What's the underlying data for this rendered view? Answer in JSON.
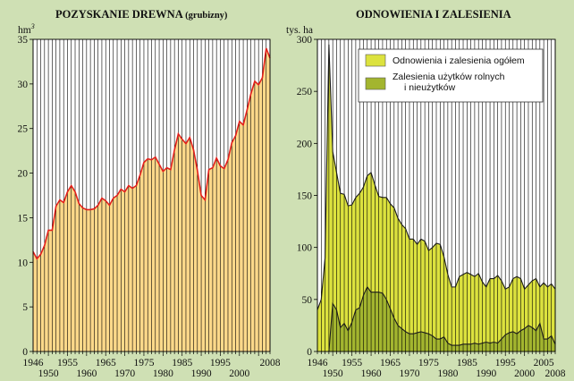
{
  "chart_data": [
    {
      "type": "area",
      "title": "POZYSKANIE DREWNA",
      "subtitle": "(grubizny)",
      "ylabel": "hm",
      "ylabel_sup": "3",
      "ylim": [
        0,
        35
      ],
      "yticks": [
        0,
        5,
        10,
        15,
        20,
        25,
        30,
        35
      ],
      "xlim": [
        1946,
        2008
      ],
      "xticks_top": [
        "1946",
        "1955",
        "1965",
        "1975",
        "1985",
        "1995",
        "2008"
      ],
      "xticks_top_values": [
        1946,
        1955,
        1965,
        1975,
        1985,
        1995,
        2008
      ],
      "xticks_bottom": [
        "1950",
        "1960",
        "1970",
        "1980",
        "1990",
        "2000"
      ],
      "xticks_bottom_values": [
        1950,
        1960,
        1970,
        1980,
        1990,
        2000
      ],
      "grid": "vertical",
      "colors": {
        "fill": "#fdd98a",
        "line": "#e3201b",
        "grid": "#000000",
        "background": "#cfe0b4"
      },
      "series": [
        {
          "x": [
            1946,
            1947,
            1948,
            1949,
            1950,
            1951,
            1952,
            1953,
            1954,
            1955,
            1956,
            1957,
            1958,
            1959,
            1960,
            1961,
            1962,
            1963,
            1964,
            1965,
            1966,
            1967,
            1968,
            1969,
            1970,
            1971,
            1972,
            1973,
            1974,
            1975,
            1976,
            1977,
            1978,
            1979,
            1980,
            1981,
            1982,
            1983,
            1984,
            1985,
            1986,
            1987,
            1988,
            1989,
            1990,
            1991,
            1992,
            1993,
            1994,
            1995,
            1996,
            1997,
            1998,
            1999,
            2000,
            2001,
            2002,
            2003,
            2004,
            2005,
            2006,
            2007,
            2008
          ],
          "values": [
            11.2,
            10.4,
            10.9,
            11.9,
            13.6,
            13.6,
            16.3,
            17.0,
            16.7,
            17.9,
            18.6,
            17.9,
            16.6,
            16.1,
            15.9,
            15.9,
            16.0,
            16.4,
            17.2,
            16.9,
            16.4,
            17.2,
            17.5,
            18.2,
            17.9,
            18.6,
            18.3,
            18.6,
            19.8,
            21.2,
            21.6,
            21.5,
            21.8,
            21.0,
            20.2,
            20.6,
            20.4,
            22.6,
            24.4,
            23.8,
            23.3,
            24.0,
            22.6,
            20.3,
            17.5,
            17.0,
            20.4,
            20.6,
            21.7,
            20.8,
            20.5,
            21.5,
            23.4,
            24.2,
            25.8,
            25.4,
            27.1,
            28.9,
            30.3,
            29.9,
            30.7,
            34.0,
            32.9
          ]
        }
      ]
    },
    {
      "type": "area",
      "title": "ODNOWIENIA I ZALESIENIA",
      "ylabel": "tys. ha",
      "ylim": [
        0,
        300
      ],
      "yticks": [
        0,
        50,
        100,
        150,
        200,
        250,
        300
      ],
      "xlim": [
        1946,
        2008
      ],
      "xticks_top": [
        "1946",
        "1955",
        "1965",
        "1975",
        "1985",
        "1995",
        "2005"
      ],
      "xticks_top_values": [
        1946,
        1955,
        1965,
        1975,
        1985,
        1995,
        2005
      ],
      "xticks_bottom": [
        "1950",
        "1960",
        "1970",
        "1980",
        "1990",
        "2000",
        "2008"
      ],
      "xticks_bottom_values": [
        1950,
        1960,
        1970,
        1980,
        1990,
        2000,
        2008
      ],
      "grid": "vertical",
      "legend": "top-right",
      "colors": {
        "series1": "#dce23e",
        "series2": "#a3b52f",
        "grid": "#000000",
        "background": "#cfe0b4"
      },
      "series": [
        {
          "name": "Odnowienia i zalesienia ogółem",
          "x": [
            1946,
            1947,
            1948,
            1949,
            1950,
            1951,
            1952,
            1953,
            1954,
            1955,
            1956,
            1957,
            1958,
            1959,
            1960,
            1961,
            1962,
            1963,
            1964,
            1965,
            1966,
            1967,
            1968,
            1969,
            1970,
            1971,
            1972,
            1973,
            1974,
            1975,
            1976,
            1977,
            1978,
            1979,
            1980,
            1981,
            1982,
            1983,
            1984,
            1985,
            1986,
            1987,
            1988,
            1989,
            1990,
            1991,
            1992,
            1993,
            1994,
            1995,
            1996,
            1997,
            1998,
            1999,
            2000,
            2001,
            2002,
            2003,
            2004,
            2005,
            2006,
            2007,
            2008
          ],
          "values": [
            40,
            50,
            90,
            295,
            192,
            172,
            152,
            151,
            140,
            141,
            148,
            152,
            158,
            169,
            172,
            160,
            149,
            148,
            148,
            142,
            138,
            128,
            122,
            118,
            108,
            108,
            103,
            108,
            106,
            97,
            100,
            104,
            103,
            91,
            74,
            62,
            62,
            72,
            74,
            76,
            74,
            72,
            75,
            67,
            62,
            70,
            70,
            73,
            68,
            60,
            62,
            70,
            72,
            70,
            60,
            64,
            68,
            70,
            62,
            66,
            62,
            65,
            60
          ]
        },
        {
          "name": "Zalesienia użytków rolnych i nieużytków",
          "x": [
            1949,
            1950,
            1951,
            1952,
            1953,
            1954,
            1955,
            1956,
            1957,
            1958,
            1959,
            1960,
            1961,
            1962,
            1963,
            1964,
            1965,
            1966,
            1967,
            1968,
            1969,
            1970,
            1971,
            1972,
            1973,
            1974,
            1975,
            1976,
            1977,
            1978,
            1979,
            1980,
            1981,
            1982,
            1983,
            1984,
            1985,
            1986,
            1987,
            1988,
            1989,
            1990,
            1991,
            1992,
            1993,
            1994,
            1995,
            1996,
            1997,
            1998,
            1999,
            2000,
            2001,
            2002,
            2003,
            2004,
            2005,
            2006,
            2007,
            2008
          ],
          "values": [
            0,
            46,
            40,
            23,
            27,
            20,
            28,
            40,
            42,
            54,
            62,
            57,
            57,
            57,
            56,
            50,
            41,
            32,
            25,
            22,
            19,
            17,
            17,
            18,
            19,
            18,
            17,
            15,
            12,
            12,
            14,
            8,
            6,
            6,
            6,
            7,
            7,
            7,
            8,
            7,
            8,
            9,
            8,
            9,
            8,
            12,
            16,
            18,
            19,
            17,
            20,
            22,
            25,
            23,
            20,
            27,
            12,
            12,
            15,
            7
          ]
        }
      ]
    }
  ]
}
